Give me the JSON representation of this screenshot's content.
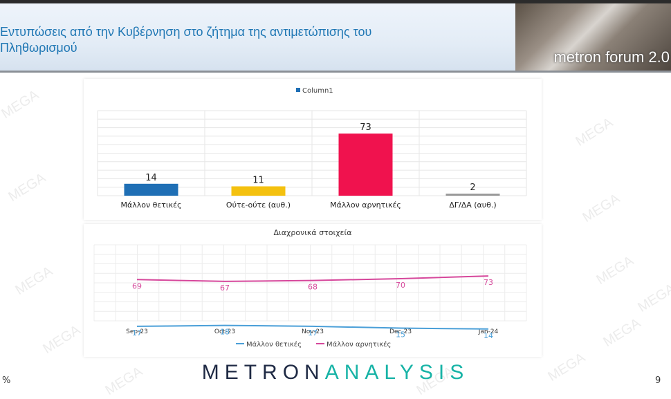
{
  "header": {
    "title": "Εντυπώσεις από την Κυβέρνηση στο ζήτημα της αντιμετώπισης του Πληθωρισμού",
    "logo_text": "metron forum 2.0"
  },
  "watermark_text": "MEGA",
  "chart_data": [
    {
      "type": "bar",
      "legend": [
        "Column1"
      ],
      "categories": [
        "Μάλλον θετικές",
        "Ούτε-ούτε (αυθ.)",
        "Μάλλον αρνητικές",
        "ΔΓ/ΔΑ (αυθ.)"
      ],
      "values": [
        14,
        11,
        73,
        2
      ],
      "colors": [
        "#1f6fb5",
        "#f4c10f",
        "#f0124e",
        "#9a9a9a"
      ],
      "legend_color": "#1f6fb5",
      "grid": true,
      "legend_position": "top"
    },
    {
      "type": "line",
      "title": "Διαχρονικά στοιχεία",
      "x": [
        "Sep-23",
        "Oct-23",
        "Nov-23",
        "Dec-23",
        "Jan-24"
      ],
      "series": [
        {
          "name": "Μάλλον θετικές",
          "values": [
            17,
            18,
            17,
            15,
            14
          ],
          "color": "#4a9fd8"
        },
        {
          "name": "Μάλλον αρνητικές",
          "values": [
            69,
            67,
            68,
            70,
            73
          ],
          "color": "#d6479b"
        }
      ],
      "grid": true,
      "legend_position": "bottom"
    }
  ],
  "footer": {
    "brand_part1": "METRON",
    "brand_part2": "ANALYSIS",
    "left_text": "%",
    "page_number": "9"
  }
}
